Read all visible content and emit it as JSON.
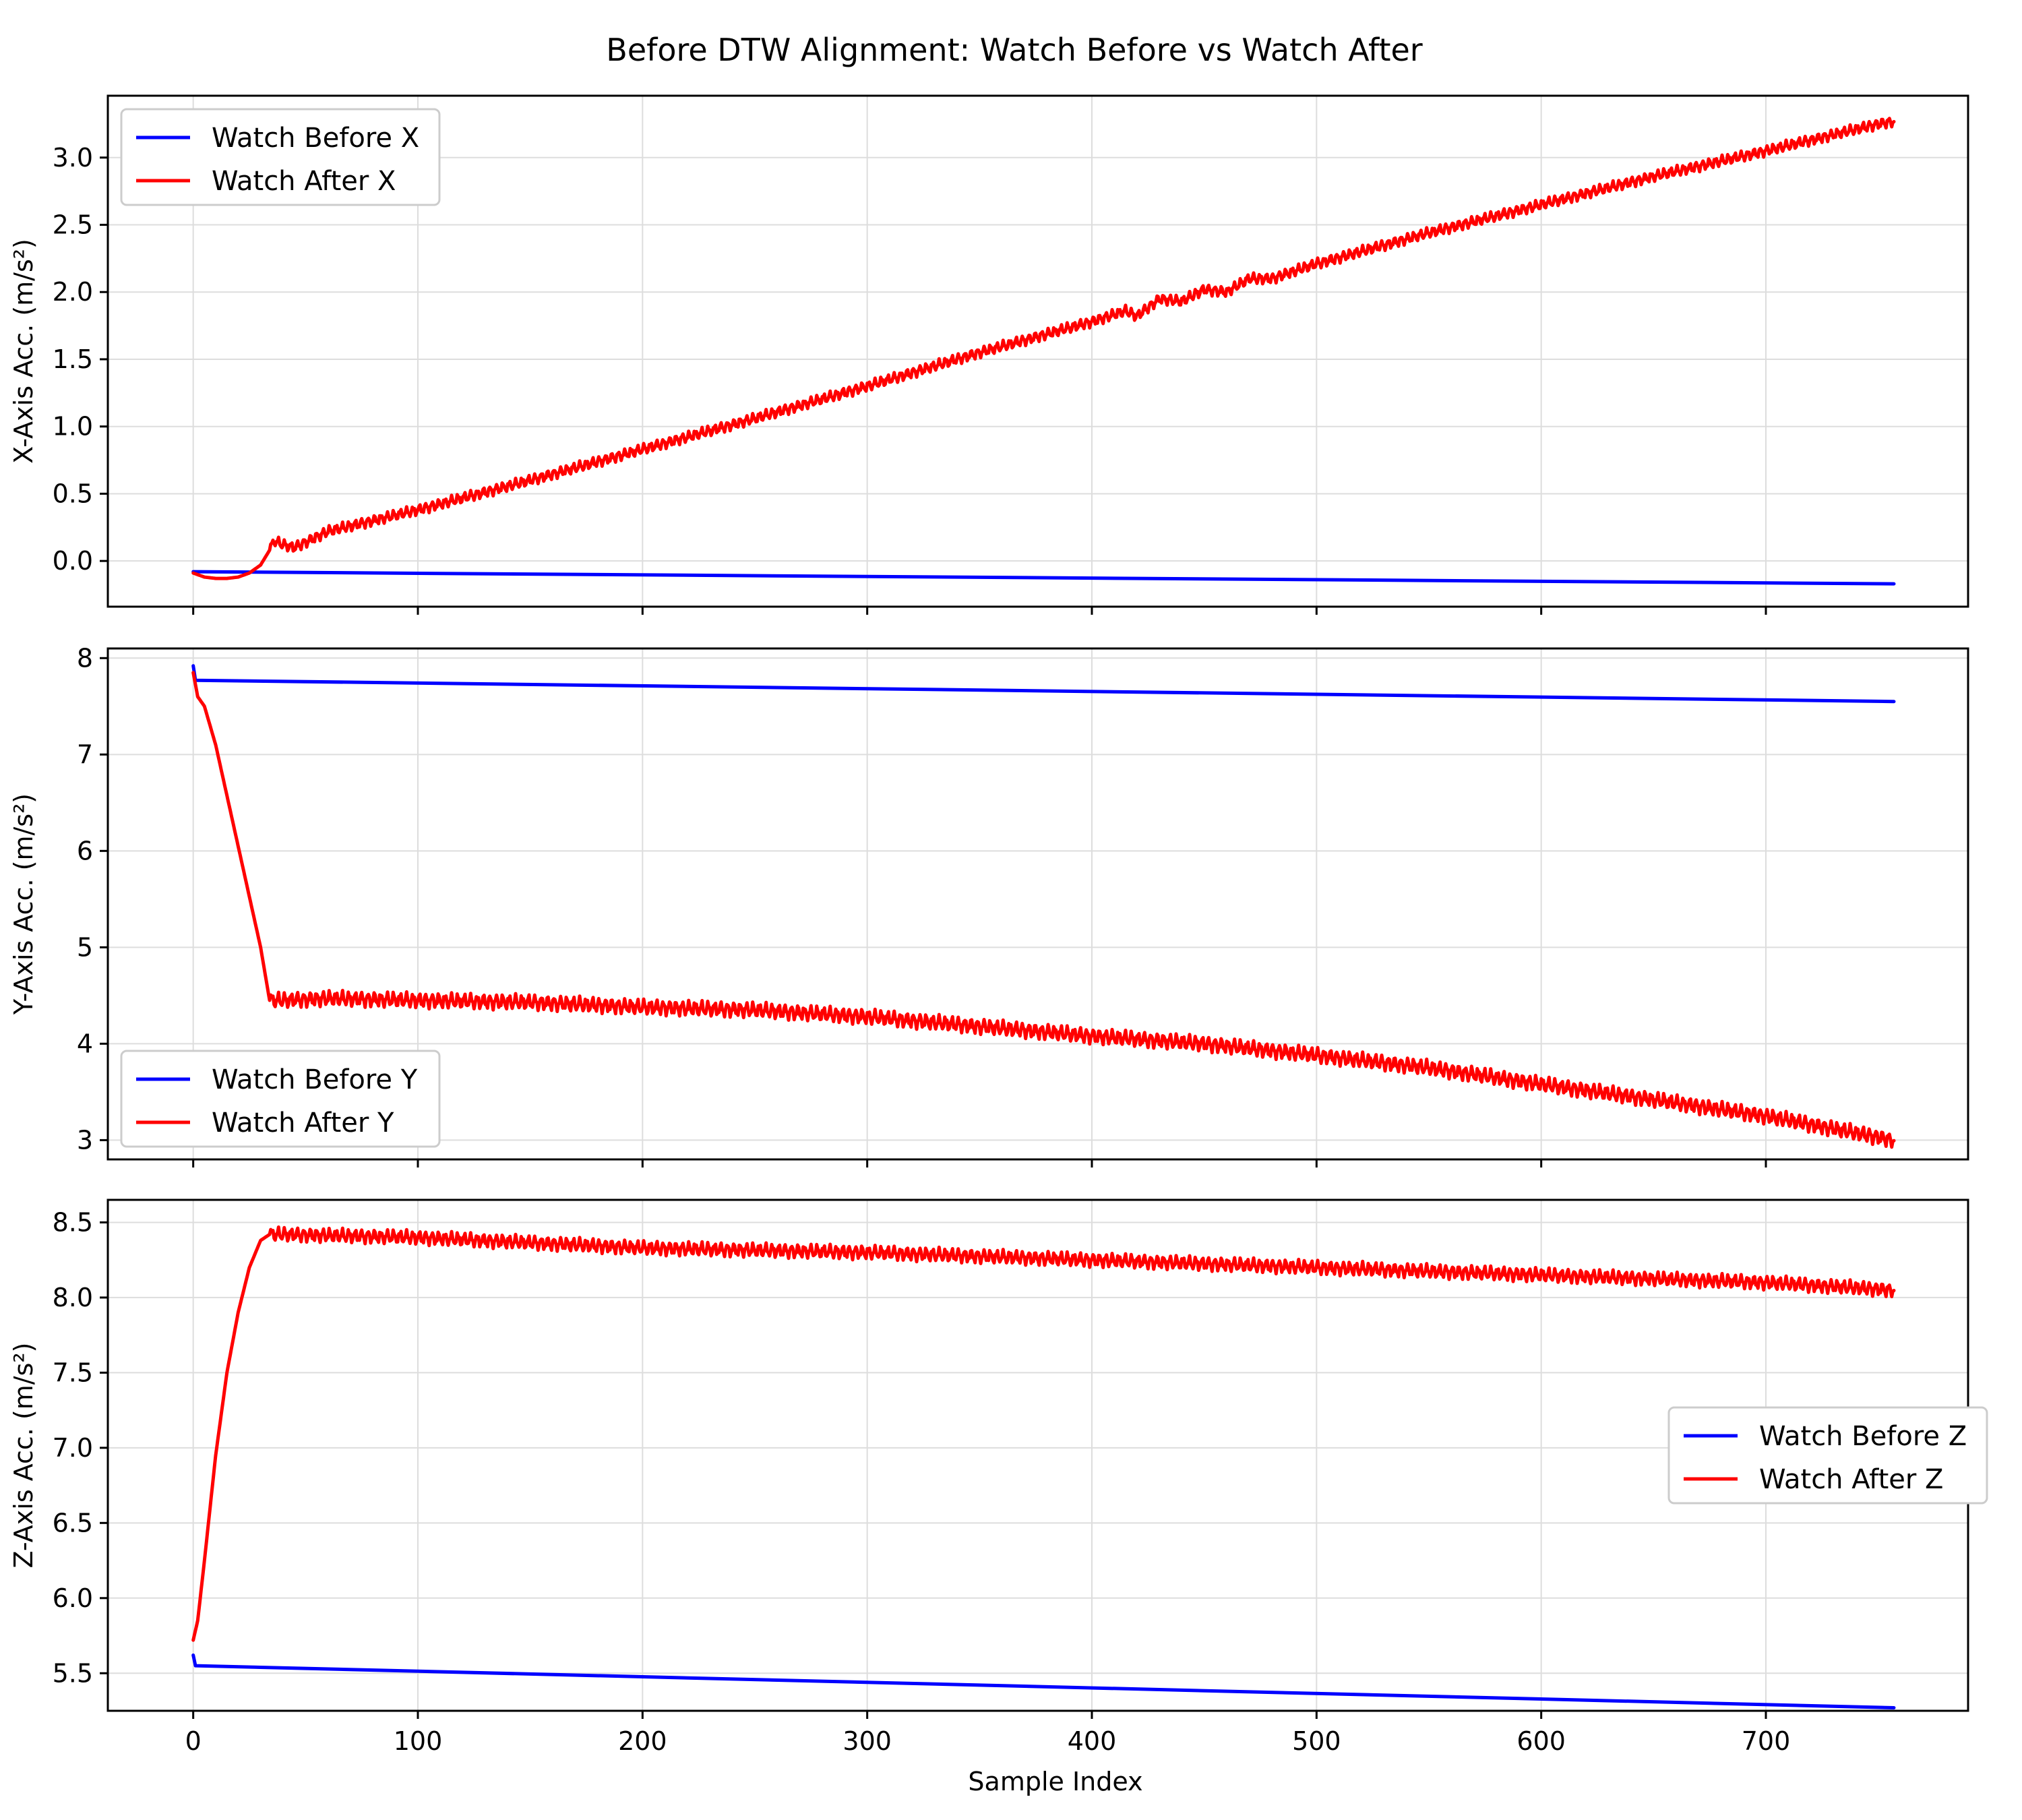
{
  "figure": {
    "title": "Before DTW Alignment: Watch Before vs Watch After",
    "xlabel": "Sample Index"
  },
  "colors": {
    "before": "#0000ff",
    "after": "#ff0000"
  },
  "chart_data": [
    {
      "type": "line",
      "ylabel": "X-Axis Acc. (m/s²)",
      "xlim": [
        -38,
        790
      ],
      "ylim": [
        -0.34,
        3.46
      ],
      "xticks": [
        0,
        100,
        200,
        300,
        400,
        500,
        600,
        700
      ],
      "yticks": [
        0.0,
        0.5,
        1.0,
        1.5,
        2.0,
        2.5,
        3.0
      ],
      "ytick_labels": [
        "0.0",
        "0.5",
        "1.0",
        "1.5",
        "2.0",
        "2.5",
        "3.0"
      ],
      "grid": true,
      "legend": "top-left",
      "series": [
        {
          "name": "Watch Before X",
          "color": "#0000ff",
          "x": [
            0,
            757
          ],
          "y": [
            -0.08,
            -0.17
          ]
        },
        {
          "name": "Watch After X",
          "color": "#ff0000",
          "x": [
            0,
            5,
            10,
            15,
            20,
            25,
            30,
            34,
            36,
            40,
            45,
            50,
            60,
            100,
            150,
            200,
            250,
            300,
            350,
            400,
            415,
            420,
            430,
            440,
            450,
            460,
            470,
            480,
            500,
            550,
            600,
            650,
            700,
            750,
            757
          ],
          "y": [
            -0.09,
            -0.12,
            -0.13,
            -0.13,
            -0.12,
            -0.09,
            -0.03,
            0.08,
            0.15,
            0.12,
            0.1,
            0.14,
            0.22,
            0.38,
            0.6,
            0.83,
            1.06,
            1.3,
            1.55,
            1.78,
            1.86,
            1.82,
            1.95,
            1.93,
            2.02,
            2.0,
            2.1,
            2.1,
            2.21,
            2.44,
            2.65,
            2.86,
            3.05,
            3.25,
            3.27
          ],
          "noise_amplitude": 0.03
        }
      ]
    },
    {
      "type": "line",
      "ylabel": "Y-Axis Acc. (m/s²)",
      "xlim": [
        -38,
        790
      ],
      "ylim": [
        2.8,
        8.1
      ],
      "xticks": [
        0,
        100,
        200,
        300,
        400,
        500,
        600,
        700
      ],
      "yticks": [
        3,
        4,
        5,
        6,
        7,
        8
      ],
      "ytick_labels": [
        "3",
        "4",
        "5",
        "6",
        "7",
        "8"
      ],
      "grid": true,
      "legend": "bottom-left",
      "series": [
        {
          "name": "Watch Before Y",
          "color": "#0000ff",
          "x": [
            0,
            1,
            757
          ],
          "y": [
            7.92,
            7.77,
            7.55
          ]
        },
        {
          "name": "Watch After Y",
          "color": "#ff0000",
          "x": [
            0,
            2,
            5,
            10,
            20,
            30,
            34,
            40,
            60,
            100,
            150,
            200,
            250,
            300,
            350,
            400,
            450,
            500,
            550,
            600,
            650,
            700,
            757
          ],
          "y": [
            7.85,
            7.6,
            7.5,
            7.1,
            6.05,
            5.0,
            4.45,
            4.45,
            4.47,
            4.45,
            4.43,
            4.38,
            4.35,
            4.28,
            4.18,
            4.08,
            4.0,
            3.88,
            3.75,
            3.58,
            3.42,
            3.25,
            3.0
          ],
          "noise_amplitude": 0.06
        }
      ]
    },
    {
      "type": "line",
      "ylabel": "Z-Axis Acc. (m/s²)",
      "xlim": [
        -38,
        790
      ],
      "ylim": [
        5.25,
        8.65
      ],
      "xticks": [
        0,
        100,
        200,
        300,
        400,
        500,
        600,
        700
      ],
      "xtick_labels": [
        "0",
        "100",
        "200",
        "300",
        "400",
        "500",
        "600",
        "700"
      ],
      "yticks": [
        5.5,
        6.0,
        6.5,
        7.0,
        7.5,
        8.0,
        8.5
      ],
      "ytick_labels": [
        "5.5",
        "6.0",
        "6.5",
        "7.0",
        "7.5",
        "8.0",
        "8.5"
      ],
      "grid": true,
      "legend": "right",
      "series": [
        {
          "name": "Watch Before Z",
          "color": "#0000ff",
          "x": [
            0,
            1,
            757
          ],
          "y": [
            5.62,
            5.55,
            5.27
          ]
        },
        {
          "name": "Watch After Z",
          "color": "#ff0000",
          "x": [
            0,
            2,
            5,
            10,
            15,
            20,
            25,
            30,
            34,
            40,
            100,
            200,
            300,
            400,
            500,
            600,
            700,
            757
          ],
          "y": [
            5.72,
            5.85,
            6.25,
            6.95,
            7.5,
            7.9,
            8.2,
            8.38,
            8.42,
            8.42,
            8.4,
            8.33,
            8.3,
            8.25,
            8.2,
            8.15,
            8.1,
            8.05
          ],
          "noise_amplitude": 0.035
        }
      ]
    }
  ]
}
